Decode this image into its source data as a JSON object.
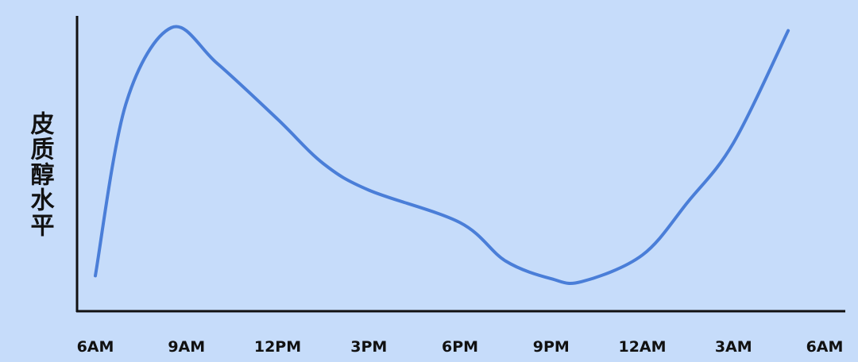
{
  "chart_data": {
    "type": "line",
    "y_label": "皮质醇水平",
    "x": [
      0,
      1,
      2.5,
      4,
      6,
      7.5,
      9,
      12,
      13.5,
      15,
      16,
      18,
      19.5,
      21,
      22.8
    ],
    "series": [
      {
        "color": "#4a7ed8",
        "values": [
          12,
          70,
          96,
          84,
          65,
          50,
          41,
          30,
          17,
          11,
          10,
          19,
          37,
          57,
          95
        ]
      }
    ],
    "xlim": [
      0,
      24
    ],
    "xticks": [
      {
        "value": 0,
        "label": "6AM"
      },
      {
        "value": 3,
        "label": "9AM"
      },
      {
        "value": 6,
        "label": "12PM"
      },
      {
        "value": 9,
        "label": "3PM"
      },
      {
        "value": 12,
        "label": "6PM"
      },
      {
        "value": 15,
        "label": "9PM"
      },
      {
        "value": 18,
        "label": "12AM"
      },
      {
        "value": 21,
        "label": "3AM"
      },
      {
        "value": 24,
        "label": "6AM"
      }
    ],
    "ylim": [
      0,
      100
    ]
  }
}
